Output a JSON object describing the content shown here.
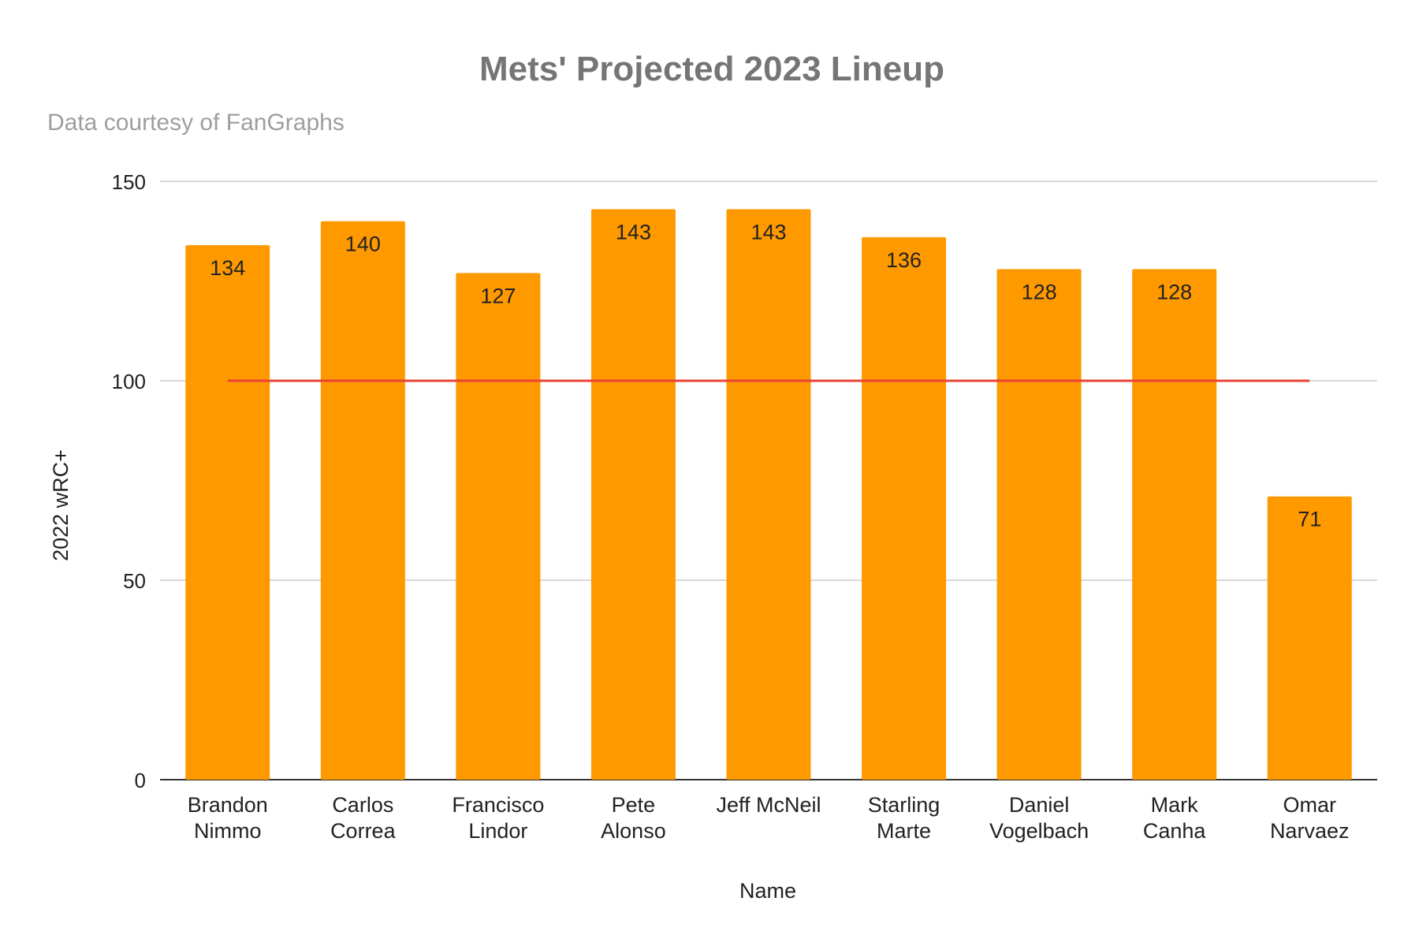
{
  "chart_data": {
    "type": "bar",
    "title": "Mets' Projected 2023 Lineup",
    "subtitle": "Data courtesy of FanGraphs",
    "xlabel": "Name",
    "ylabel": "2022 wRC+",
    "ylim": [
      0,
      150
    ],
    "yticks": [
      0,
      50,
      100,
      150
    ],
    "grid": true,
    "categories": [
      [
        "Brandon",
        "Nimmo"
      ],
      [
        "Carlos",
        "Correa"
      ],
      [
        "Francisco",
        "Lindor"
      ],
      [
        "Pete",
        "Alonso"
      ],
      [
        "Jeff McNeil"
      ],
      [
        "Starling",
        "Marte"
      ],
      [
        "Daniel",
        "Vogelbach"
      ],
      [
        "Mark",
        "Canha"
      ],
      [
        "Omar",
        "Narvaez"
      ]
    ],
    "values": [
      134,
      140,
      127,
      143,
      143,
      136,
      128,
      128,
      71
    ],
    "reference_line": {
      "value": 100,
      "from_category": 0,
      "to_category": 8
    },
    "colors": {
      "bar": "#ff9900",
      "reference_line": "#ea4335",
      "grid": "#cccccc",
      "baseline": "#333333"
    }
  }
}
